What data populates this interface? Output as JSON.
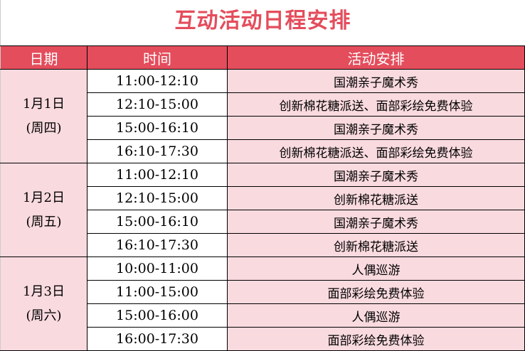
{
  "title": "互动活动日程安排",
  "headers": {
    "date": "日期",
    "time": "时间",
    "activity": "活动安排"
  },
  "colors": {
    "accent": "#e44d5c",
    "row_pink": "#f9dadf"
  },
  "days": [
    {
      "date": "1月1日",
      "weekday": "(周四)",
      "rows": [
        {
          "time": "11:00-12:10",
          "activity": "国潮亲子魔术秀"
        },
        {
          "time": "12:10-15:00",
          "activity": "创新棉花糖派送、面部彩绘免费体验"
        },
        {
          "time": "15:00-16:10",
          "activity": "国潮亲子魔术秀"
        },
        {
          "time": "16:10-17:30",
          "activity": "创新棉花糖派送、面部彩绘免费体验"
        }
      ]
    },
    {
      "date": "1月2日",
      "weekday": "(周五)",
      "rows": [
        {
          "time": "11:00-12:10",
          "activity": "国潮亲子魔术秀"
        },
        {
          "time": "12:10-15:00",
          "activity": "创新棉花糖派送"
        },
        {
          "time": "15:00-16:10",
          "activity": "国潮亲子魔术秀"
        },
        {
          "time": "16:10-17:30",
          "activity": "创新棉花糖派送"
        }
      ]
    },
    {
      "date": "1月3日",
      "weekday": "(周六)",
      "rows": [
        {
          "time": "10:00-11:00",
          "activity": "人偶巡游"
        },
        {
          "time": "11:00-15:00",
          "activity": "面部彩绘免费体验"
        },
        {
          "time": "15:00-16:00",
          "activity": "人偶巡游"
        },
        {
          "time": "16:00-17:30",
          "activity": "面部彩绘免费体验"
        }
      ]
    }
  ]
}
